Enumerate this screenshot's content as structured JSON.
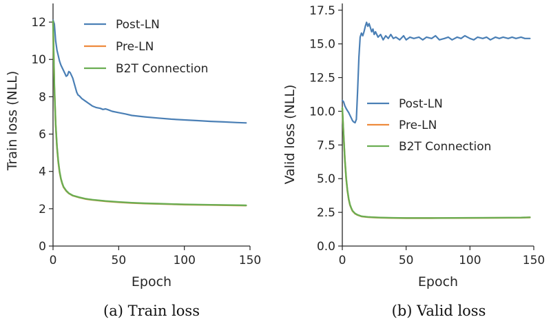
{
  "chart_data": [
    {
      "type": "line",
      "id": "train",
      "caption": "(a) Train loss",
      "xlabel": "Epoch",
      "ylabel": "Train loss (NLL)",
      "xlim": [
        0,
        150
      ],
      "ylim": [
        0,
        13
      ],
      "xticks": [
        0,
        50,
        100,
        150
      ],
      "yticks": [
        0,
        2,
        4,
        6,
        8,
        10,
        12
      ],
      "legend_position": "top-right",
      "series": [
        {
          "name": "Post-LN",
          "color": "#4a7fb5",
          "points": [
            [
              0,
              12.1
            ],
            [
              1,
              11.9
            ],
            [
              2,
              11.0
            ],
            [
              3,
              10.5
            ],
            [
              4,
              10.2
            ],
            [
              5,
              9.9
            ],
            [
              6,
              9.7
            ],
            [
              7,
              9.55
            ],
            [
              8,
              9.4
            ],
            [
              9,
              9.25
            ],
            [
              10,
              9.1
            ],
            [
              11,
              9.15
            ],
            [
              12,
              9.35
            ],
            [
              13,
              9.3
            ],
            [
              14,
              9.15
            ],
            [
              15,
              9.0
            ],
            [
              16,
              8.75
            ],
            [
              17,
              8.5
            ],
            [
              18,
              8.25
            ],
            [
              19,
              8.1
            ],
            [
              20,
              8.05
            ],
            [
              22,
              7.9
            ],
            [
              25,
              7.75
            ],
            [
              28,
              7.6
            ],
            [
              30,
              7.5
            ],
            [
              33,
              7.42
            ],
            [
              36,
              7.38
            ],
            [
              38,
              7.32
            ],
            [
              40,
              7.35
            ],
            [
              42,
              7.3
            ],
            [
              45,
              7.22
            ],
            [
              50,
              7.15
            ],
            [
              55,
              7.08
            ],
            [
              60,
              7.0
            ],
            [
              70,
              6.92
            ],
            [
              80,
              6.86
            ],
            [
              90,
              6.8
            ],
            [
              100,
              6.76
            ],
            [
              110,
              6.72
            ],
            [
              120,
              6.68
            ],
            [
              130,
              6.65
            ],
            [
              140,
              6.62
            ],
            [
              147,
              6.6
            ]
          ]
        },
        {
          "name": "Pre-LN",
          "color": "#ee8a3c",
          "points": [
            [
              0,
              12.0
            ],
            [
              1,
              8.5
            ],
            [
              2,
              6.5
            ],
            [
              3,
              5.3
            ],
            [
              4,
              4.5
            ],
            [
              5,
              3.95
            ],
            [
              6,
              3.6
            ],
            [
              7,
              3.35
            ],
            [
              8,
              3.15
            ],
            [
              10,
              2.95
            ],
            [
              12,
              2.82
            ],
            [
              15,
              2.7
            ],
            [
              20,
              2.6
            ],
            [
              25,
              2.52
            ],
            [
              30,
              2.47
            ],
            [
              40,
              2.4
            ],
            [
              50,
              2.35
            ],
            [
              60,
              2.31
            ],
            [
              70,
              2.28
            ],
            [
              80,
              2.26
            ],
            [
              90,
              2.24
            ],
            [
              100,
              2.22
            ],
            [
              120,
              2.2
            ],
            [
              140,
              2.18
            ],
            [
              147,
              2.17
            ]
          ]
        },
        {
          "name": "B2T Connection",
          "color": "#6aad52",
          "points": [
            [
              0,
              12.05
            ],
            [
              1,
              8.6
            ],
            [
              2,
              6.55
            ],
            [
              3,
              5.35
            ],
            [
              4,
              4.55
            ],
            [
              5,
              4.0
            ],
            [
              6,
              3.62
            ],
            [
              7,
              3.37
            ],
            [
              8,
              3.17
            ],
            [
              10,
              2.97
            ],
            [
              12,
              2.83
            ],
            [
              15,
              2.71
            ],
            [
              20,
              2.61
            ],
            [
              25,
              2.53
            ],
            [
              30,
              2.48
            ],
            [
              40,
              2.41
            ],
            [
              50,
              2.36
            ],
            [
              60,
              2.32
            ],
            [
              70,
              2.29
            ],
            [
              80,
              2.27
            ],
            [
              90,
              2.25
            ],
            [
              100,
              2.23
            ],
            [
              120,
              2.21
            ],
            [
              140,
              2.19
            ],
            [
              147,
              2.18
            ]
          ]
        }
      ]
    },
    {
      "type": "line",
      "id": "valid",
      "caption": "(b) Valid loss",
      "xlabel": "Epoch",
      "ylabel": "Valid loss (NLL)",
      "xlim": [
        0,
        150
      ],
      "ylim": [
        0,
        18
      ],
      "xticks": [
        0,
        50,
        100,
        150
      ],
      "yticks": [
        0.0,
        2.5,
        5.0,
        7.5,
        10.0,
        12.5,
        15.0,
        17.5
      ],
      "yticklabels": [
        "0.0",
        "2.5",
        "5.0",
        "7.5",
        "10.0",
        "12.5",
        "15.0",
        "17.5"
      ],
      "legend_position": "center-right",
      "series": [
        {
          "name": "Post-LN",
          "color": "#4a7fb5",
          "points": [
            [
              0,
              10.8
            ],
            [
              1,
              10.7
            ],
            [
              2,
              10.4
            ],
            [
              3,
              10.2
            ],
            [
              4,
              10.05
            ],
            [
              5,
              9.9
            ],
            [
              6,
              9.7
            ],
            [
              7,
              9.5
            ],
            [
              8,
              9.3
            ],
            [
              9,
              9.2
            ],
            [
              10,
              9.15
            ],
            [
              11,
              9.4
            ],
            [
              12,
              11.5
            ],
            [
              13,
              14.0
            ],
            [
              14,
              15.5
            ],
            [
              15,
              15.8
            ],
            [
              16,
              15.6
            ],
            [
              17,
              15.9
            ],
            [
              18,
              16.3
            ],
            [
              19,
              16.6
            ],
            [
              20,
              16.3
            ],
            [
              21,
              16.5
            ],
            [
              22,
              16.2
            ],
            [
              23,
              15.9
            ],
            [
              24,
              16.1
            ],
            [
              25,
              15.7
            ],
            [
              26,
              15.9
            ],
            [
              28,
              15.5
            ],
            [
              30,
              15.7
            ],
            [
              32,
              15.3
            ],
            [
              34,
              15.6
            ],
            [
              36,
              15.4
            ],
            [
              38,
              15.7
            ],
            [
              40,
              15.4
            ],
            [
              42,
              15.5
            ],
            [
              45,
              15.3
            ],
            [
              48,
              15.6
            ],
            [
              50,
              15.3
            ],
            [
              53,
              15.5
            ],
            [
              56,
              15.4
            ],
            [
              60,
              15.5
            ],
            [
              63,
              15.3
            ],
            [
              66,
              15.5
            ],
            [
              70,
              15.4
            ],
            [
              73,
              15.6
            ],
            [
              76,
              15.3
            ],
            [
              80,
              15.4
            ],
            [
              83,
              15.5
            ],
            [
              86,
              15.3
            ],
            [
              90,
              15.5
            ],
            [
              93,
              15.4
            ],
            [
              96,
              15.6
            ],
            [
              100,
              15.4
            ],
            [
              103,
              15.3
            ],
            [
              106,
              15.5
            ],
            [
              110,
              15.4
            ],
            [
              113,
              15.5
            ],
            [
              116,
              15.3
            ],
            [
              120,
              15.5
            ],
            [
              123,
              15.4
            ],
            [
              126,
              15.5
            ],
            [
              130,
              15.4
            ],
            [
              133,
              15.5
            ],
            [
              136,
              15.4
            ],
            [
              140,
              15.5
            ],
            [
              143,
              15.4
            ],
            [
              147,
              15.4
            ]
          ]
        },
        {
          "name": "Pre-LN",
          "color": "#ee8a3c",
          "points": [
            [
              0,
              10.2
            ],
            [
              1,
              8.2
            ],
            [
              2,
              6.4
            ],
            [
              3,
              5.0
            ],
            [
              4,
              4.1
            ],
            [
              5,
              3.45
            ],
            [
              6,
              3.05
            ],
            [
              7,
              2.8
            ],
            [
              8,
              2.6
            ],
            [
              10,
              2.4
            ],
            [
              12,
              2.3
            ],
            [
              15,
              2.2
            ],
            [
              20,
              2.15
            ],
            [
              25,
              2.12
            ],
            [
              30,
              2.1
            ],
            [
              40,
              2.08
            ],
            [
              50,
              2.07
            ],
            [
              70,
              2.07
            ],
            [
              100,
              2.08
            ],
            [
              120,
              2.09
            ],
            [
              140,
              2.1
            ],
            [
              147,
              2.12
            ]
          ]
        },
        {
          "name": "B2T Connection",
          "color": "#6aad52",
          "points": [
            [
              0,
              10.25
            ],
            [
              1,
              8.25
            ],
            [
              2,
              6.45
            ],
            [
              3,
              5.05
            ],
            [
              4,
              4.15
            ],
            [
              5,
              3.5
            ],
            [
              6,
              3.08
            ],
            [
              7,
              2.82
            ],
            [
              8,
              2.62
            ],
            [
              10,
              2.42
            ],
            [
              12,
              2.31
            ],
            [
              15,
              2.21
            ],
            [
              20,
              2.16
            ],
            [
              25,
              2.13
            ],
            [
              30,
              2.11
            ],
            [
              40,
              2.09
            ],
            [
              50,
              2.08
            ],
            [
              70,
              2.08
            ],
            [
              100,
              2.09
            ],
            [
              120,
              2.1
            ],
            [
              140,
              2.11
            ],
            [
              147,
              2.13
            ]
          ]
        }
      ]
    }
  ]
}
